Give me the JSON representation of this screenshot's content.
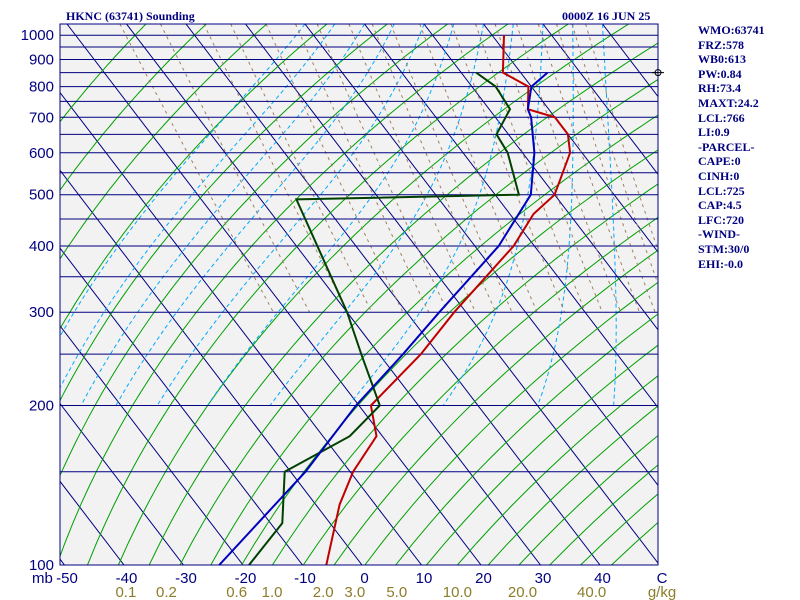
{
  "header": {
    "station": "HKNC (63741) Sounding",
    "time": "0000Z 16 JUN 25"
  },
  "indices": [
    "WMO:63741",
    "FRZ:578",
    "WB0:613",
    "PW:0.84",
    "RH:73.4",
    "MAXT:24.2",
    "LCL:766",
    "LI:0.9",
    "-PARCEL-",
    "CAPE:0",
    "CINH:0",
    "LCL:725",
    "CAP:4.5",
    "LFC:720",
    "-WIND-",
    "STM:30/0",
    "EHI:-0.0"
  ],
  "colors": {
    "frame": "#000080",
    "isobar": "#000080",
    "isotherm": "#000080",
    "dry_adiabat": "#00a000",
    "moist_adiabat": "#00aaff",
    "mixing_ratio": "#a08060",
    "temperature": "#c00000",
    "dewpoint": "#004000",
    "parcel": "#0000c0",
    "mr_labels": "#8b7d2a",
    "background": "#f2f2f2"
  },
  "chart_data": {
    "type": "skew-t",
    "y_axis": {
      "unit": "mb",
      "scale": "log",
      "range": [
        1000,
        100
      ],
      "labeled_ticks": [
        100,
        200,
        300,
        400,
        500,
        600,
        700,
        800,
        900,
        1000
      ],
      "isobars": [
        100,
        150,
        200,
        250,
        300,
        350,
        400,
        450,
        500,
        550,
        600,
        650,
        700,
        750,
        800,
        850,
        900,
        950,
        1000
      ]
    },
    "x_axis": {
      "unit": "C",
      "tick_labels": [
        "-50",
        "-40",
        "-30",
        "-20",
        "-10",
        "0",
        "10",
        "20",
        "30",
        "40",
        "C"
      ],
      "tick_values": [
        -50,
        -40,
        -30,
        -20,
        -10,
        0,
        10,
        20,
        30,
        40,
        50
      ]
    },
    "mixing_ratio_axis": {
      "unit": "g/kg",
      "labels": [
        "0.1",
        "0.2",
        "0.6",
        "1.0",
        "2.0",
        "3.0",
        "5.0",
        "10.0",
        "20.0",
        "40.0",
        "g/kg"
      ],
      "values": [
        0.1,
        0.2,
        0.6,
        1.0,
        2.0,
        3.0,
        5.0,
        10.0,
        20.0,
        40.0
      ]
    },
    "series": [
      {
        "key": "temperature",
        "points": [
          [
            1000,
            22.0
          ],
          [
            850,
            17.0
          ],
          [
            800,
            19.5
          ],
          [
            725,
            16.5
          ],
          [
            700,
            20.0
          ],
          [
            650,
            20.0
          ],
          [
            600,
            18.0
          ],
          [
            500,
            10.0
          ],
          [
            460,
            4.0
          ],
          [
            400,
            -3.5
          ],
          [
            300,
            -22.0
          ],
          [
            250,
            -33.0
          ],
          [
            200,
            -48.0
          ],
          [
            175,
            -51.0
          ],
          [
            150,
            -59.5
          ],
          [
            130,
            -66.0
          ],
          [
            100,
            -76.0
          ]
        ]
      },
      {
        "key": "dewpoint",
        "points": [
          [
            850,
            12.5
          ],
          [
            800,
            14.0
          ],
          [
            725,
            13.5
          ],
          [
            650,
            8.0
          ],
          [
            600,
            7.5
          ],
          [
            500,
            4.0
          ],
          [
            490,
            -34.0
          ],
          [
            300,
            -40.0
          ],
          [
            250,
            -43.0
          ],
          [
            200,
            -46.5
          ],
          [
            175,
            -55.5
          ],
          [
            150,
            -71.0
          ],
          [
            120,
            -78.0
          ],
          [
            100,
            -89.0
          ]
        ]
      },
      {
        "key": "parcel",
        "points": [
          [
            850,
            24.5
          ],
          [
            800,
            20.0
          ],
          [
            725,
            16.5
          ],
          [
            700,
            16.0
          ],
          [
            600,
            12.0
          ],
          [
            500,
            6.0
          ],
          [
            400,
            -6.0
          ],
          [
            300,
            -24.5
          ],
          [
            250,
            -36.0
          ],
          [
            200,
            -50.5
          ],
          [
            150,
            -67.5
          ],
          [
            100,
            -94.0
          ]
        ]
      }
    ],
    "wind_marker": {
      "pressure": 850,
      "label": "calm"
    }
  }
}
